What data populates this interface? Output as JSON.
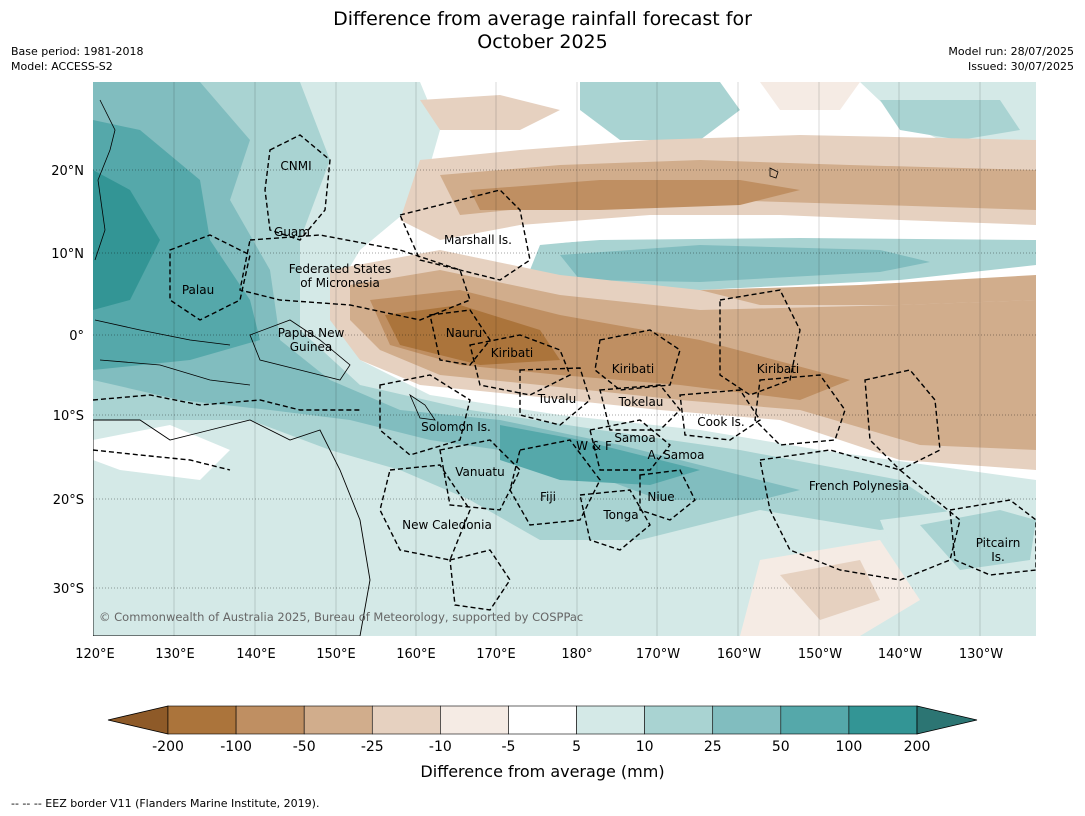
{
  "title_line1": "Difference from average rainfall forecast for",
  "title_line2": "October 2025",
  "meta_left": [
    "Base period: 1981-2018",
    "Model: ACCESS-S2"
  ],
  "meta_right": [
    "Model run: 28/07/2025",
    "Issued: 30/07/2025"
  ],
  "map": {
    "lat_labels": [
      "20°N",
      "10°N",
      "0°",
      "10°S",
      "20°S",
      "30°S"
    ],
    "lon_labels": [
      "120°E",
      "130°E",
      "140°E",
      "150°E",
      "160°E",
      "170°E",
      "180°",
      "170°W",
      "160°W",
      "150°W",
      "140°W",
      "130°W"
    ],
    "region_labels": [
      {
        "name": "CNMI"
      },
      {
        "name": "Guam"
      },
      {
        "name": "Marshall Is."
      },
      {
        "name": "Federated States"
      },
      {
        "name": "of Micronesia"
      },
      {
        "name": "Palau"
      },
      {
        "name": "Papua New"
      },
      {
        "name": "Guinea"
      },
      {
        "name": "Nauru"
      },
      {
        "name": "Kiribati"
      },
      {
        "name": "Kiribati"
      },
      {
        "name": "Kiribati"
      },
      {
        "name": "Tuvalu"
      },
      {
        "name": "Tokelau"
      },
      {
        "name": "Cook Is."
      },
      {
        "name": "Solomon Is."
      },
      {
        "name": "Samoa"
      },
      {
        "name": "W & F"
      },
      {
        "name": "A. Samoa"
      },
      {
        "name": "Vanuatu"
      },
      {
        "name": "Fiji"
      },
      {
        "name": "Niue"
      },
      {
        "name": "Tonga"
      },
      {
        "name": "French Polynesia"
      },
      {
        "name": "New Caledonia"
      },
      {
        "name": "Pitcairn"
      },
      {
        "name": "Is."
      }
    ],
    "copyright": "© Commonwealth of Australia 2025, Bureau of Meteorology, supported by COSPPac"
  },
  "colorbar": {
    "colors": [
      "#8e5a28",
      "#ab743b",
      "#bf8f62",
      "#d1ad8c",
      "#e6d1c0",
      "#f5ebe4",
      "#ffffff",
      "#d4e9e7",
      "#a9d3d2",
      "#81bdbf",
      "#55a8aa",
      "#339595",
      "#2c7573"
    ],
    "ticks": [
      "-200",
      "-100",
      "-50",
      "-25",
      "-10",
      "-5",
      "5",
      "10",
      "25",
      "50",
      "100",
      "200"
    ],
    "unit_label": "Difference from average (mm)"
  },
  "footnote": "--  --  -- EEZ border V11 (Flanders Marine Institute, 2019)."
}
